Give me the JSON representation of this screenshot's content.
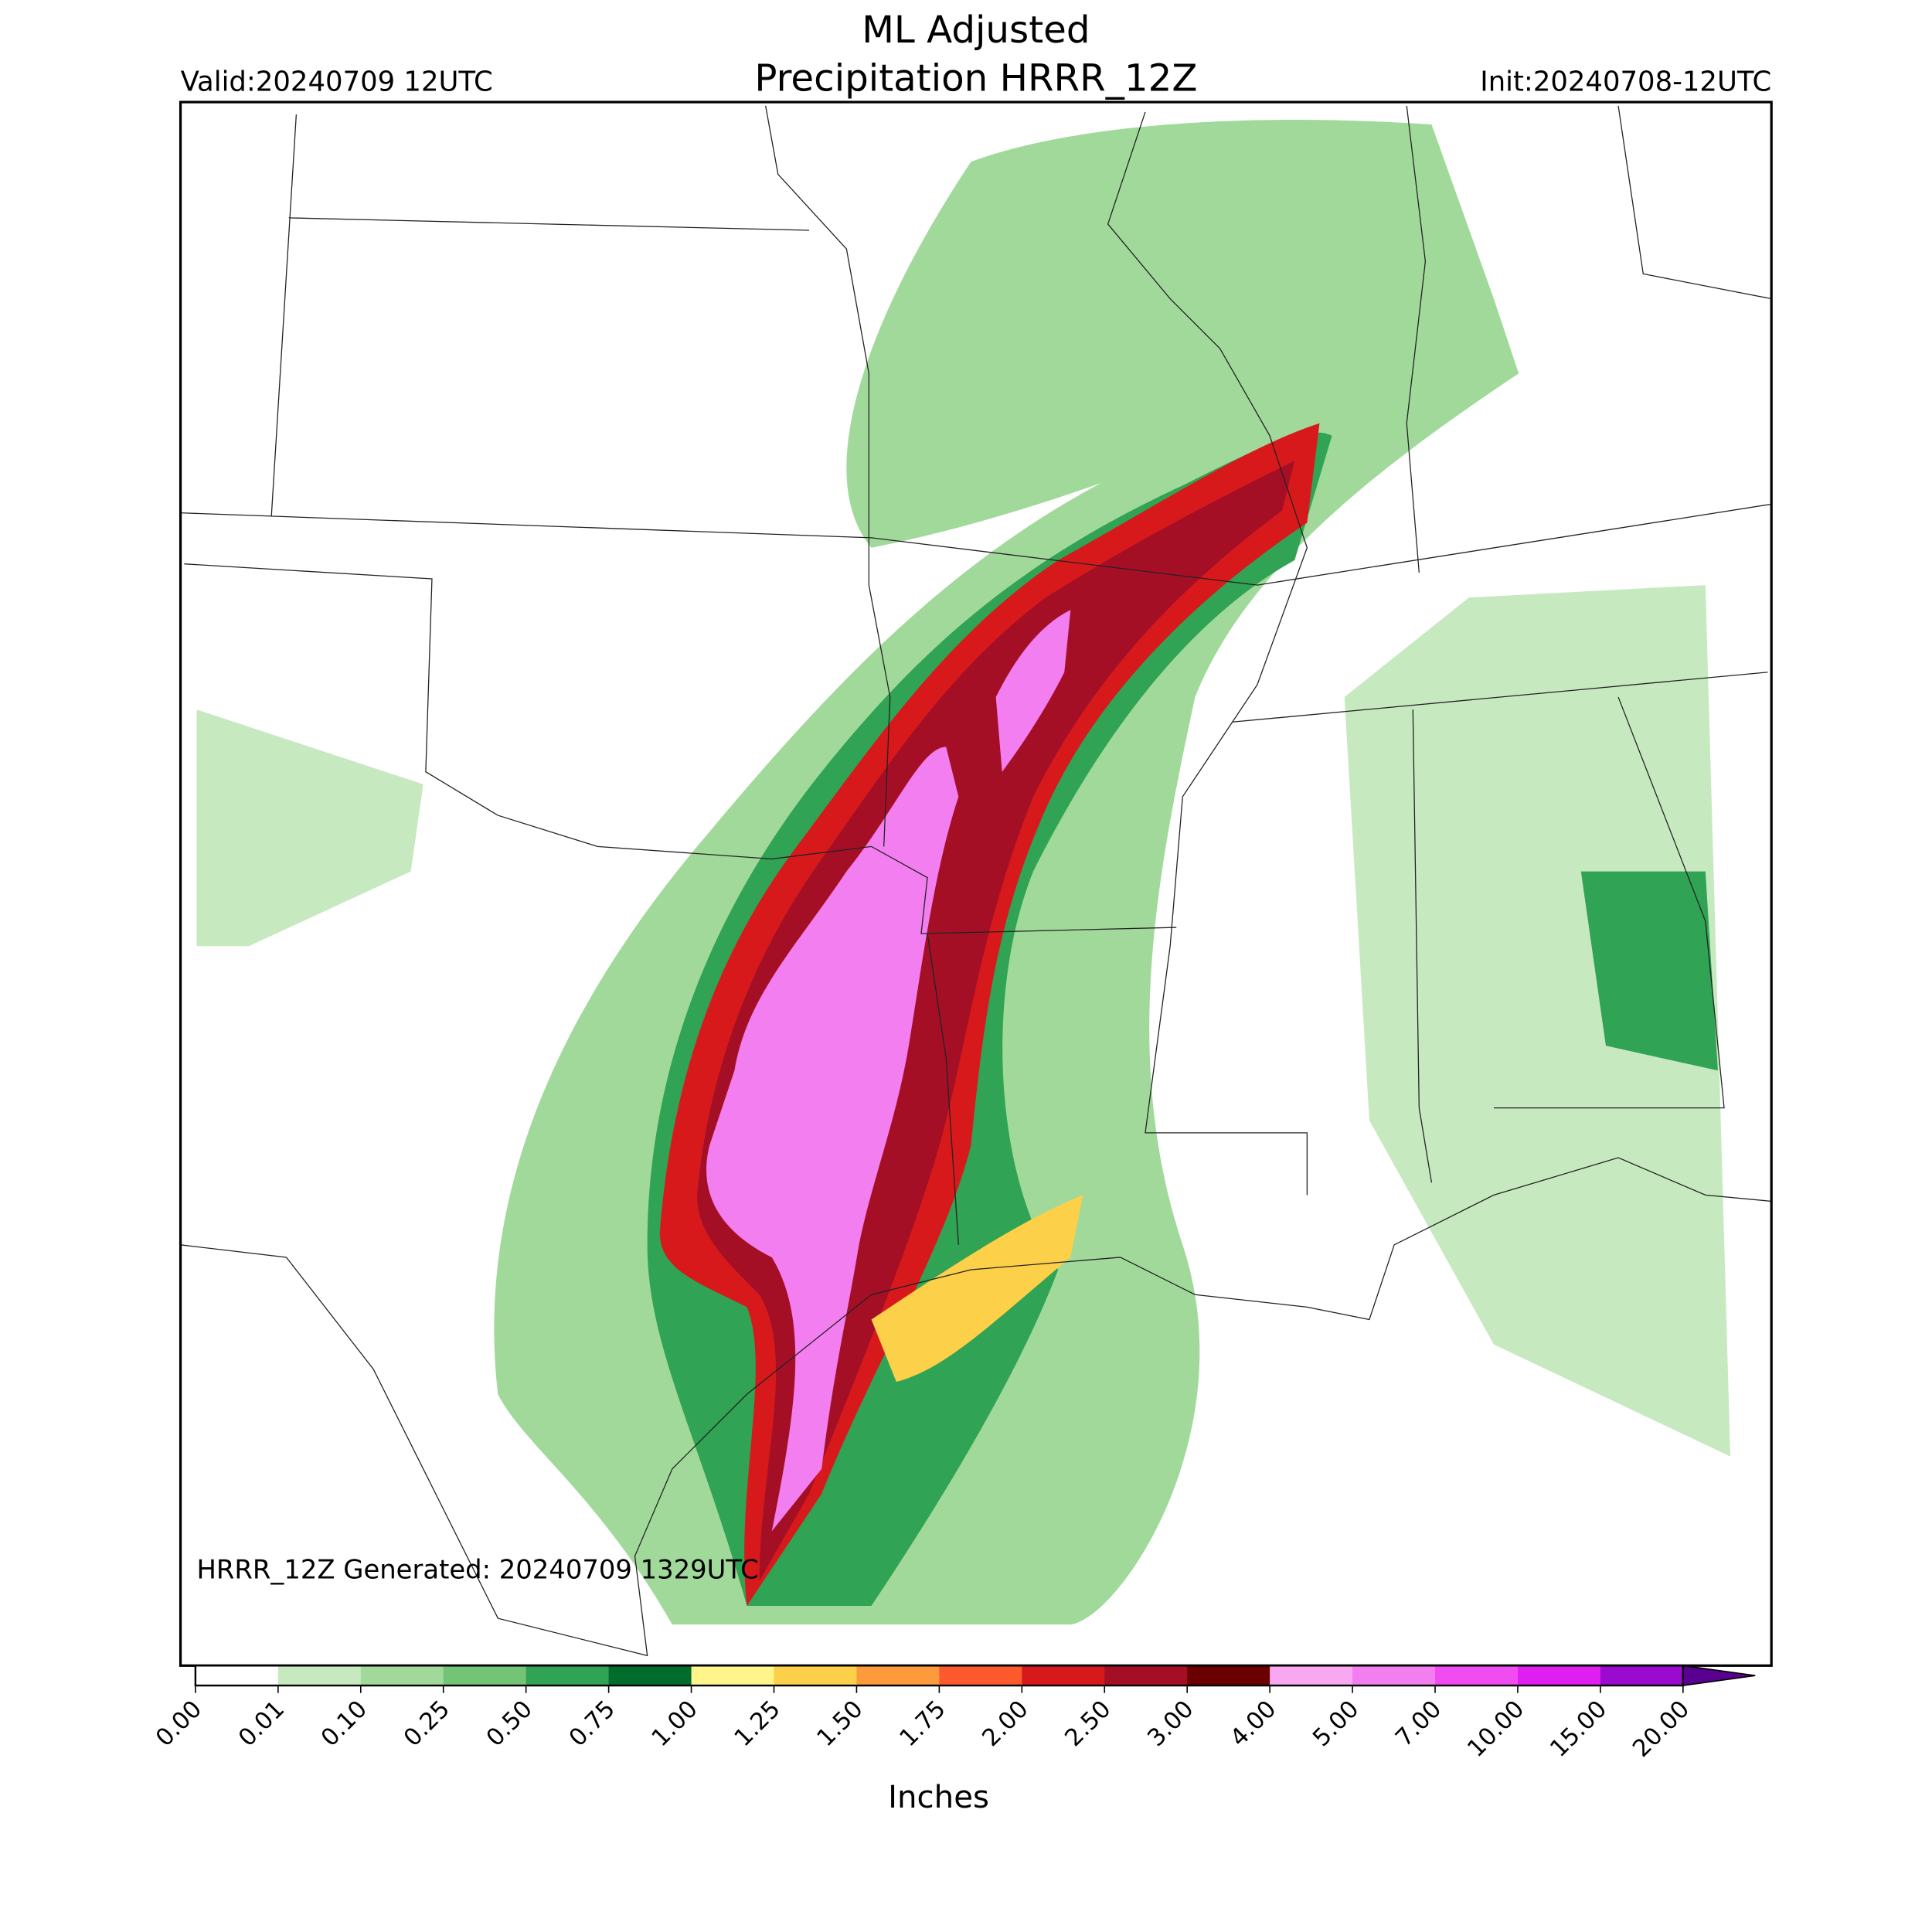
{
  "header": {
    "title_line1": "ML Adjusted",
    "title_line2": "Precipitation HRRR_12Z",
    "valid": "Valid:20240709 12UTC",
    "init": "Init:20240708-12UTC"
  },
  "map": {
    "generated": "HRRR_12Z Generated: 20240709 1329UTC"
  },
  "colorbar": {
    "label": "Inches",
    "ticks": [
      "0.00",
      "0.01",
      "0.10",
      "0.25",
      "0.50",
      "0.75",
      "1.00",
      "1.25",
      "1.50",
      "1.75",
      "2.00",
      "2.50",
      "3.00",
      "4.00",
      "5.00",
      "7.00",
      "10.00",
      "15.00",
      "20.00"
    ],
    "colors": [
      "#ffffff",
      "#c7e9c0",
      "#a1d99b",
      "#74c476",
      "#31a354",
      "#006d2c",
      "#fff58a",
      "#fdd049",
      "#fd9a3c",
      "#fc5a2d",
      "#d7191c",
      "#a50f26",
      "#6b0000",
      "#f7a8f0",
      "#f37ef0",
      "#f04cf0",
      "#e01ef0",
      "#9a0ad0"
    ],
    "extend_color": "#5a0090"
  }
}
